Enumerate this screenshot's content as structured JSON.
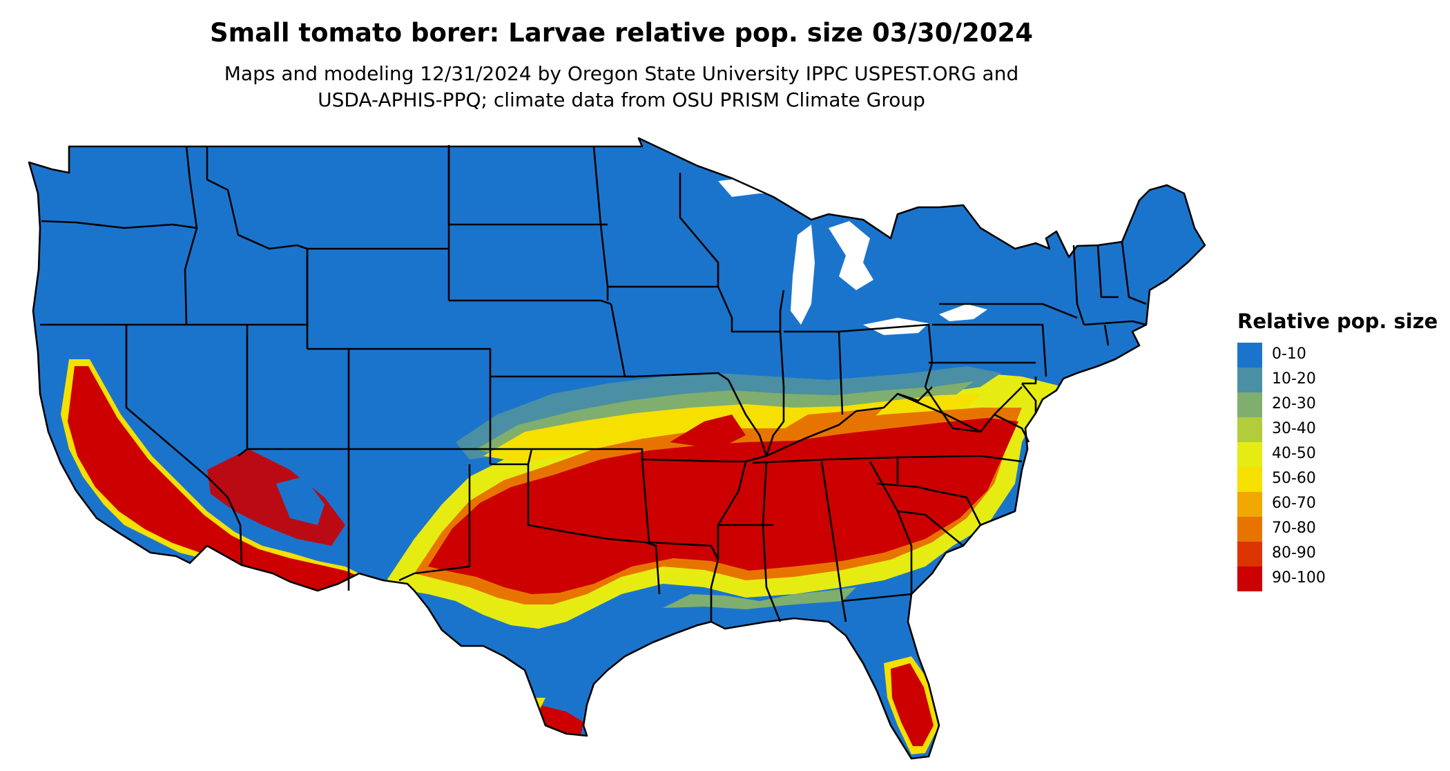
{
  "title": "Small tomato borer: Larvae relative pop. size 03/30/2024",
  "subtitle_line1": "Maps and modeling 12/31/2024 by Oregon State University IPPC USPEST.ORG and",
  "subtitle_line2": "USDA-APHIS-PPQ; climate data from OSU PRISM Climate Group",
  "legend": {
    "title": "Relative pop. size",
    "items": [
      {
        "label": "0-10",
        "color": "#1b74cc"
      },
      {
        "label": "10-20",
        "color": "#4a8fa3"
      },
      {
        "label": "20-30",
        "color": "#7fae6e"
      },
      {
        "label": "30-40",
        "color": "#b2cc3c"
      },
      {
        "label": "40-50",
        "color": "#e6ec12"
      },
      {
        "label": "50-60",
        "color": "#f5e000"
      },
      {
        "label": "60-70",
        "color": "#f0a800"
      },
      {
        "label": "70-80",
        "color": "#e87400"
      },
      {
        "label": "80-90",
        "color": "#dc3400"
      },
      {
        "label": "90-100",
        "color": "#cc0000"
      }
    ]
  }
}
